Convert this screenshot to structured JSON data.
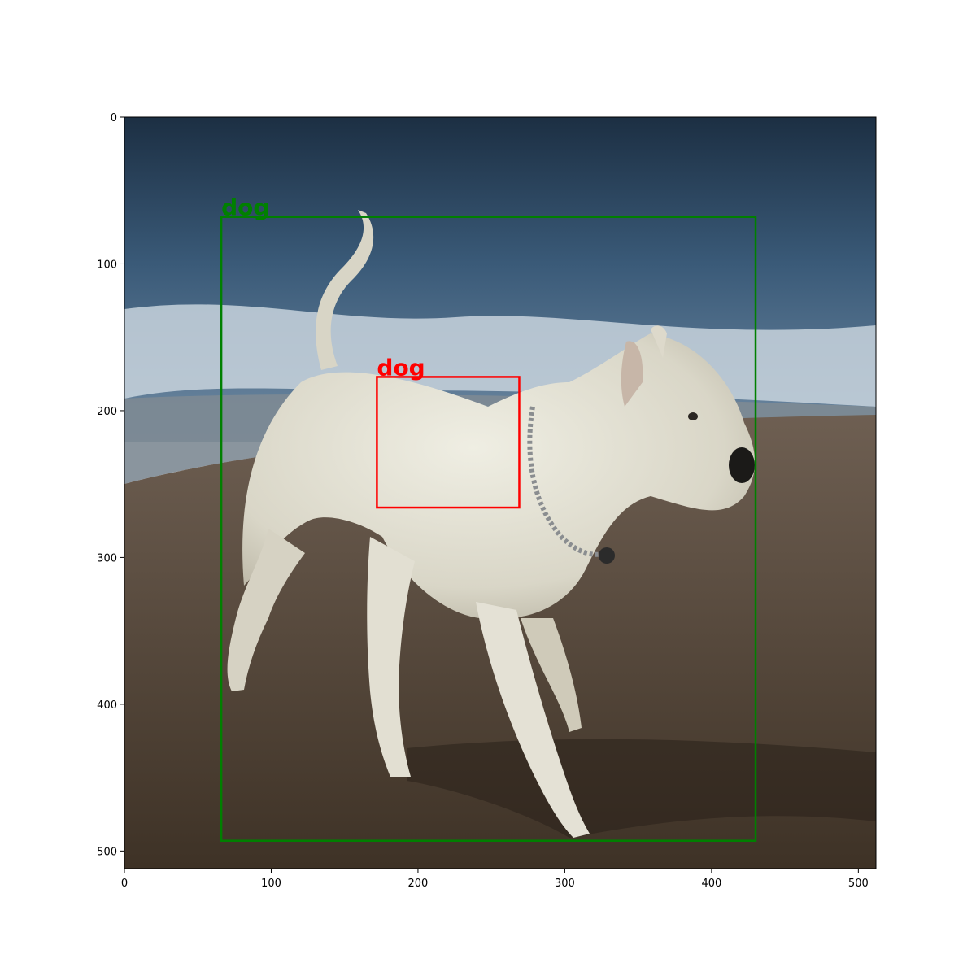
{
  "image": {
    "width": 512,
    "height": 512,
    "description_free": true
  },
  "axes": {
    "x_ticks": [
      {
        "value": 0,
        "label": "0"
      },
      {
        "value": 100,
        "label": "100"
      },
      {
        "value": 200,
        "label": "200"
      },
      {
        "value": 300,
        "label": "300"
      },
      {
        "value": 400,
        "label": "400"
      },
      {
        "value": 500,
        "label": "500"
      }
    ],
    "y_ticks": [
      {
        "value": 0,
        "label": "0"
      },
      {
        "value": 100,
        "label": "100"
      },
      {
        "value": 200,
        "label": "200"
      },
      {
        "value": 300,
        "label": "300"
      },
      {
        "value": 400,
        "label": "400"
      },
      {
        "value": 500,
        "label": "500"
      }
    ]
  },
  "boxes": [
    {
      "label": "dog",
      "color": "#008000",
      "x0": 66,
      "y0": 68,
      "x1": 430,
      "y1": 493
    },
    {
      "label": "dog",
      "color": "#ff0000",
      "x0": 172,
      "y0": 177,
      "x1": 269,
      "y1": 266
    }
  ]
}
